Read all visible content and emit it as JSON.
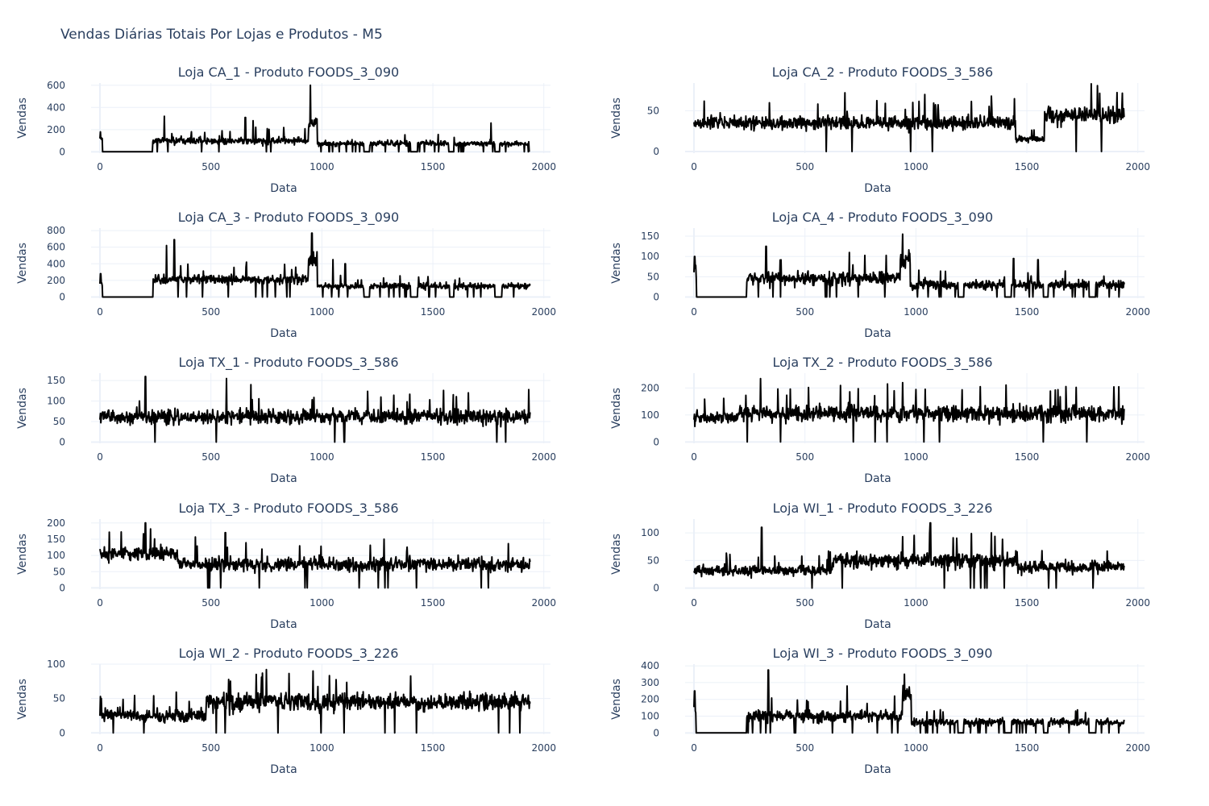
{
  "title": "Vendas Diárias Totais Por Lojas e Produtos - M5",
  "line_color": "#000000",
  "grid_color": "#ebf0f8",
  "text_color": "#2a3f5f",
  "chart_data": [
    {
      "type": "line",
      "title": "Loja CA_1 - Produto FOODS_3_090",
      "xlabel": "Data",
      "ylabel": "Vendas",
      "xlim": [
        -40,
        2030
      ],
      "ylim": [
        -12,
        620
      ],
      "xticks": [
        0,
        500,
        1000,
        1500,
        2000
      ],
      "yticks": [
        0,
        200,
        400,
        600
      ],
      "segments": [
        {
          "x0": 0,
          "x1": 12,
          "level": 120,
          "noise": 60,
          "spikes": [
            [
              2,
              180
            ]
          ]
        },
        {
          "x0": 12,
          "x1": 238,
          "level": 0,
          "noise": 0
        },
        {
          "x0": 238,
          "x1": 940,
          "level": 100,
          "noise": 70,
          "zeros": 0.02,
          "spikes": [
            [
              290,
              320
            ],
            [
              655,
              310
            ],
            [
              690,
              280
            ]
          ]
        },
        {
          "x0": 940,
          "x1": 980,
          "level": 260,
          "noise": 120,
          "spikes": [
            [
              948,
              600
            ]
          ]
        },
        {
          "x0": 980,
          "x1": 1935,
          "level": 75,
          "noise": 55,
          "zeros": 0.05,
          "gaps": [
            [
              1190,
              1215
            ],
            [
              1400,
              1430
            ],
            [
              1575,
              1595
            ],
            [
              1780,
              1800
            ]
          ],
          "spikes": [
            [
              1762,
              260
            ]
          ]
        }
      ]
    },
    {
      "type": "line",
      "title": "Loja CA_2 - Produto FOODS_3_586",
      "xlabel": "Data",
      "ylabel": "Vendas",
      "xlim": [
        -40,
        2030
      ],
      "ylim": [
        -2,
        84
      ],
      "xticks": [
        0,
        500,
        1000,
        1500,
        2000
      ],
      "yticks": [
        0,
        50
      ],
      "segments": [
        {
          "x0": 0,
          "x1": 1450,
          "level": 35,
          "noise": 18,
          "zeros": 0.01,
          "spikes": [
            [
              680,
              72
            ],
            [
              1040,
              70
            ],
            [
              1340,
              68
            ]
          ]
        },
        {
          "x0": 1450,
          "x1": 1580,
          "level": 15,
          "noise": 8
        },
        {
          "x0": 1580,
          "x1": 1940,
          "level": 45,
          "noise": 22,
          "spikes": [
            [
              1790,
              83
            ]
          ],
          "zeros": 0.01
        }
      ]
    },
    {
      "type": "line",
      "title": "Loja CA_3 - Produto FOODS_3_090",
      "xlabel": "Data",
      "ylabel": "Vendas",
      "xlim": [
        -40,
        2030
      ],
      "ylim": [
        -15,
        830
      ],
      "xticks": [
        0,
        500,
        1000,
        1500,
        2000
      ],
      "yticks": [
        0,
        200,
        400,
        600,
        800
      ],
      "segments": [
        {
          "x0": 0,
          "x1": 12,
          "level": 150,
          "noise": 100,
          "spikes": [
            [
              3,
              280
            ]
          ]
        },
        {
          "x0": 12,
          "x1": 240,
          "level": 0,
          "noise": 0
        },
        {
          "x0": 240,
          "x1": 940,
          "level": 210,
          "noise": 120,
          "zeros": 0.02,
          "spikes": [
            [
              300,
              620
            ],
            [
              335,
              690
            ],
            [
              660,
              420
            ]
          ]
        },
        {
          "x0": 940,
          "x1": 980,
          "level": 450,
          "noise": 200,
          "spikes": [
            [
              955,
              770
            ]
          ]
        },
        {
          "x0": 980,
          "x1": 1940,
          "level": 130,
          "noise": 80,
          "zeros": 0.05,
          "gaps": [
            [
              1190,
              1215
            ],
            [
              1400,
              1430
            ],
            [
              1575,
              1595
            ],
            [
              1780,
              1810
            ]
          ],
          "spikes": [
            [
              1050,
              450
            ],
            [
              1105,
              400
            ]
          ]
        }
      ]
    },
    {
      "type": "line",
      "title": "Loja CA_4 - Produto FOODS_3_090",
      "xlabel": "Data",
      "ylabel": "Vendas",
      "xlim": [
        -40,
        2030
      ],
      "ylim": [
        -3,
        170
      ],
      "xticks": [
        0,
        500,
        1000,
        1500,
        2000
      ],
      "yticks": [
        0,
        50,
        100,
        150
      ],
      "segments": [
        {
          "x0": 0,
          "x1": 12,
          "level": 55,
          "noise": 40,
          "spikes": [
            [
              3,
              100
            ]
          ]
        },
        {
          "x0": 12,
          "x1": 238,
          "level": 0,
          "noise": 0
        },
        {
          "x0": 238,
          "x1": 930,
          "level": 45,
          "noise": 35,
          "zeros": 0.02,
          "spikes": [
            [
              325,
              125
            ],
            [
              700,
              110
            ]
          ]
        },
        {
          "x0": 930,
          "x1": 975,
          "level": 90,
          "noise": 50,
          "spikes": [
            [
              940,
              155
            ]
          ]
        },
        {
          "x0": 975,
          "x1": 1940,
          "level": 30,
          "noise": 25,
          "zeros": 0.05,
          "gaps": [
            [
              1190,
              1215
            ],
            [
              1400,
              1430
            ],
            [
              1575,
              1595
            ],
            [
              1780,
              1810
            ]
          ],
          "spikes": [
            [
              1440,
              95
            ],
            [
              1550,
              92
            ]
          ]
        }
      ]
    },
    {
      "type": "line",
      "title": "Loja TX_1 - Produto FOODS_3_586",
      "xlabel": "Data",
      "ylabel": "Vendas",
      "xlim": [
        -40,
        2030
      ],
      "ylim": [
        -3,
        168
      ],
      "xticks": [
        0,
        500,
        1000,
        1500,
        2000
      ],
      "yticks": [
        0,
        50,
        100,
        150
      ],
      "segments": [
        {
          "x0": 0,
          "x1": 1940,
          "level": 62,
          "noise": 38,
          "zeros": 0.012,
          "spikes": [
            [
              205,
              160
            ],
            [
              570,
              155
            ],
            [
              680,
              140
            ],
            [
              1660,
              120
            ]
          ]
        }
      ]
    },
    {
      "type": "line",
      "title": "Loja TX_2 - Produto FOODS_3_586",
      "xlabel": "Data",
      "ylabel": "Vendas",
      "xlim": [
        -40,
        2030
      ],
      "ylim": [
        -5,
        255
      ],
      "xticks": [
        0,
        500,
        1000,
        1500,
        2000
      ],
      "yticks": [
        0,
        100,
        200
      ],
      "segments": [
        {
          "x0": 0,
          "x1": 200,
          "level": 90,
          "noise": 50
        },
        {
          "x0": 200,
          "x1": 1940,
          "level": 105,
          "noise": 65,
          "zeros": 0.012,
          "spikes": [
            [
              300,
              235
            ],
            [
              940,
              220
            ],
            [
              1290,
              205
            ]
          ]
        }
      ]
    },
    {
      "type": "line",
      "title": "Loja TX_3 - Produto FOODS_3_586",
      "xlabel": "Data",
      "ylabel": "Vendas",
      "xlim": [
        -40,
        2030
      ],
      "ylim": [
        -4,
        212
      ],
      "xticks": [
        0,
        500,
        1000,
        1500,
        2000
      ],
      "yticks": [
        0,
        50,
        100,
        150,
        200
      ],
      "segments": [
        {
          "x0": 0,
          "x1": 350,
          "level": 105,
          "noise": 50,
          "spikes": [
            [
              205,
              200
            ]
          ]
        },
        {
          "x0": 350,
          "x1": 1940,
          "level": 72,
          "noise": 45,
          "zeros": 0.012,
          "spikes": [
            [
              565,
              170
            ],
            [
              1280,
              150
            ]
          ]
        }
      ]
    },
    {
      "type": "line",
      "title": "Loja WI_1 - Produto FOODS_3_226",
      "xlabel": "Data",
      "ylabel": "Vendas",
      "xlim": [
        -40,
        2030
      ],
      "ylim": [
        -2,
        125
      ],
      "xticks": [
        0,
        500,
        1000,
        1500,
        2000
      ],
      "yticks": [
        0,
        50,
        100
      ],
      "segments": [
        {
          "x0": 0,
          "x1": 630,
          "level": 32,
          "noise": 22,
          "zeros": 0.01,
          "spikes": [
            [
              305,
              110
            ]
          ]
        },
        {
          "x0": 630,
          "x1": 1460,
          "level": 50,
          "noise": 32,
          "zeros": 0.01,
          "spikes": [
            [
              1065,
              118
            ],
            [
              1340,
              100
            ]
          ]
        },
        {
          "x0": 1460,
          "x1": 1940,
          "level": 38,
          "noise": 25,
          "zeros": 0.01
        }
      ]
    },
    {
      "type": "line",
      "title": "Loja WI_2 - Produto FOODS_3_226",
      "xlabel": "Data",
      "ylabel": "Vendas",
      "xlim": [
        -40,
        2030
      ],
      "ylim": [
        -2,
        100
      ],
      "xticks": [
        0,
        500,
        1000,
        1500,
        2000
      ],
      "yticks": [
        0,
        50,
        100
      ],
      "segments": [
        {
          "x0": 0,
          "x1": 480,
          "level": 25,
          "noise": 22,
          "zeros": 0.015
        },
        {
          "x0": 480,
          "x1": 1940,
          "level": 45,
          "noise": 28,
          "zeros": 0.01,
          "spikes": [
            [
              750,
              92
            ],
            [
              960,
              90
            ]
          ]
        }
      ]
    },
    {
      "type": "line",
      "title": "Loja WI_3 - Produto FOODS_3_090",
      "xlabel": "Data",
      "ylabel": "Vendas",
      "xlim": [
        -40,
        2030
      ],
      "ylim": [
        -8,
        410
      ],
      "xticks": [
        0,
        500,
        1000,
        1500,
        2000
      ],
      "yticks": [
        0,
        100,
        200,
        300,
        400
      ],
      "segments": [
        {
          "x0": 0,
          "x1": 10,
          "level": 150,
          "noise": 90,
          "spikes": [
            [
              3,
              250
            ]
          ]
        },
        {
          "x0": 10,
          "x1": 238,
          "level": 0,
          "noise": 0
        },
        {
          "x0": 238,
          "x1": 940,
          "level": 100,
          "noise": 70,
          "zeros": 0.02,
          "spikes": [
            [
              335,
              375
            ],
            [
              690,
              280
            ]
          ]
        },
        {
          "x0": 940,
          "x1": 980,
          "level": 220,
          "noise": 120,
          "spikes": [
            [
              948,
              350
            ]
          ]
        },
        {
          "x0": 980,
          "x1": 1940,
          "level": 65,
          "noise": 45,
          "zeros": 0.05,
          "gaps": [
            [
              1190,
              1215
            ],
            [
              1400,
              1430
            ],
            [
              1575,
              1595
            ],
            [
              1780,
              1810
            ]
          ]
        }
      ]
    }
  ]
}
